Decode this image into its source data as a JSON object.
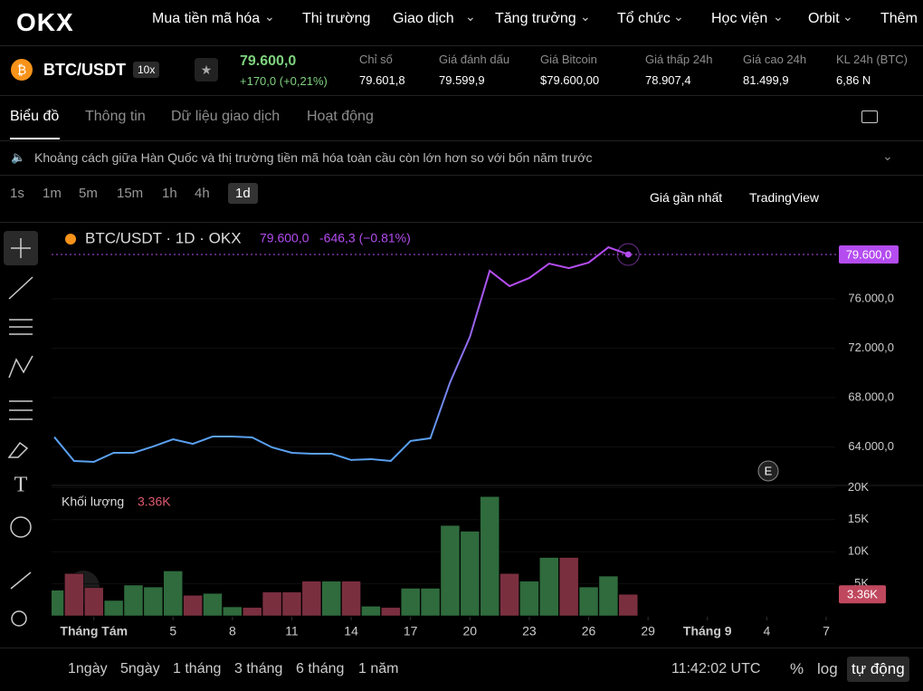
{
  "nav": {
    "items": [
      "Mua tiền mã hóa",
      "Thị trường",
      "Giao dịch",
      "Tăng trưởng",
      "Tổ chức",
      "Học viện",
      "Orbit",
      "Thêm"
    ]
  },
  "ticker": {
    "pair": "BTC/USDT",
    "leverage": "10x",
    "price": "79.600,0",
    "change": "+170,0 (+0,21%)",
    "stats": [
      {
        "label": "Chỉ số",
        "value": "79.601,8"
      },
      {
        "label": "Giá đánh dấu",
        "value": "79.599,9"
      },
      {
        "label": "Giá Bitcoin",
        "value": "$79.600,00"
      },
      {
        "label": "Giá thấp 24h",
        "value": "78.907,4"
      },
      {
        "label": "Giá cao 24h",
        "value": "81.499,9"
      },
      {
        "label": "KL 24h (BTC)",
        "value": "6,86 N"
      }
    ]
  },
  "tabs": [
    "Biểu đồ",
    "Thông tin",
    "Dữ liệu giao dịch",
    "Hoạt động"
  ],
  "announcement": "Khoảng cách giữa Hàn Quốc và thị trường tiền mã hóa toàn cầu còn lớn hơn so với bốn năm trước",
  "intervals": [
    "1s",
    "1m",
    "5m",
    "15m",
    "1h",
    "4h",
    "1d"
  ],
  "price_source": "Giá gần nhất",
  "chart_engine": "TradingView",
  "chart_data": {
    "type": "line",
    "title": "BTC/USDT · 1D · OKX",
    "last_label": "79.600,0",
    "change_label": "-646,3 (−0.81%)",
    "event_marker": "E",
    "x": [
      "07-30",
      "07-31",
      "08-01",
      "08-02",
      "08-03",
      "08-04",
      "08-05",
      "08-06",
      "08-07",
      "08-08",
      "08-09",
      "08-10",
      "08-11",
      "08-12",
      "08-13",
      "08-14",
      "08-15",
      "08-16",
      "08-17",
      "08-18",
      "08-19",
      "08-20",
      "08-21",
      "08-22",
      "08-23",
      "08-24",
      "08-25",
      "08-26",
      "08-27",
      "08-28"
    ],
    "values": [
      64800,
      62860,
      62790,
      63520,
      63520,
      64040,
      64620,
      64250,
      64840,
      64840,
      64770,
      63960,
      63520,
      63450,
      63450,
      62940,
      63010,
      62860,
      64480,
      64700,
      69250,
      72920,
      78280,
      77030,
      77690,
      78860,
      78490,
      78940,
      80180,
      79600
    ],
    "colors": [
      "#5aa0f0",
      "#b44cf0"
    ],
    "xlim": [
      "07-30",
      "09-07"
    ],
    "xticks": [
      {
        "value": "08-01",
        "label": "Tháng Tám"
      },
      {
        "value": "08-05",
        "label": "5"
      },
      {
        "value": "08-08",
        "label": "8"
      },
      {
        "value": "08-11",
        "label": "11"
      },
      {
        "value": "08-14",
        "label": "14"
      },
      {
        "value": "08-17",
        "label": "17"
      },
      {
        "value": "08-20",
        "label": "20"
      },
      {
        "value": "08-23",
        "label": "23"
      },
      {
        "value": "08-26",
        "label": "26"
      },
      {
        "value": "08-29",
        "label": "29"
      },
      {
        "value": "09-01",
        "label": "Tháng 9"
      },
      {
        "value": "09-04",
        "label": "4"
      },
      {
        "value": "09-07",
        "label": "7"
      }
    ],
    "ylim": [
      60950,
      82240
    ],
    "yticks": [
      {
        "value": 64000,
        "label": "64.000,0"
      },
      {
        "value": 68000,
        "label": "68.000,0"
      },
      {
        "value": 72000,
        "label": "72.000,0"
      },
      {
        "value": 76000,
        "label": "76.000,0"
      }
    ],
    "volume": {
      "name": "Khối lượng",
      "last_label": "3.36K",
      "up_color": "#2f6b3d",
      "down_color": "#7a2f3f",
      "values": [
        4.0,
        6.6,
        4.4,
        2.4,
        4.8,
        4.5,
        7.0,
        3.2,
        3.5,
        1.4,
        1.3,
        3.7,
        3.7,
        5.4,
        5.4,
        5.4,
        1.5,
        1.3,
        4.3,
        4.3,
        14.1,
        13.2,
        18.6,
        6.6,
        5.4,
        9.1,
        9.1,
        4.5,
        6.2,
        3.36
      ],
      "ylim": [
        0,
        20.2
      ],
      "yticks": [
        {
          "value": 5,
          "label": "5K"
        },
        {
          "value": 10,
          "label": "10K"
        },
        {
          "value": 15,
          "label": "15K"
        },
        {
          "value": 20,
          "label": "20K"
        }
      ]
    }
  },
  "range_buttons": [
    "1ngày",
    "5ngày",
    "1 tháng",
    "3 tháng",
    "6 tháng",
    "1 năm"
  ],
  "clock": "11:42:02 UTC",
  "scale_options": [
    "%",
    "log",
    "tự động"
  ]
}
